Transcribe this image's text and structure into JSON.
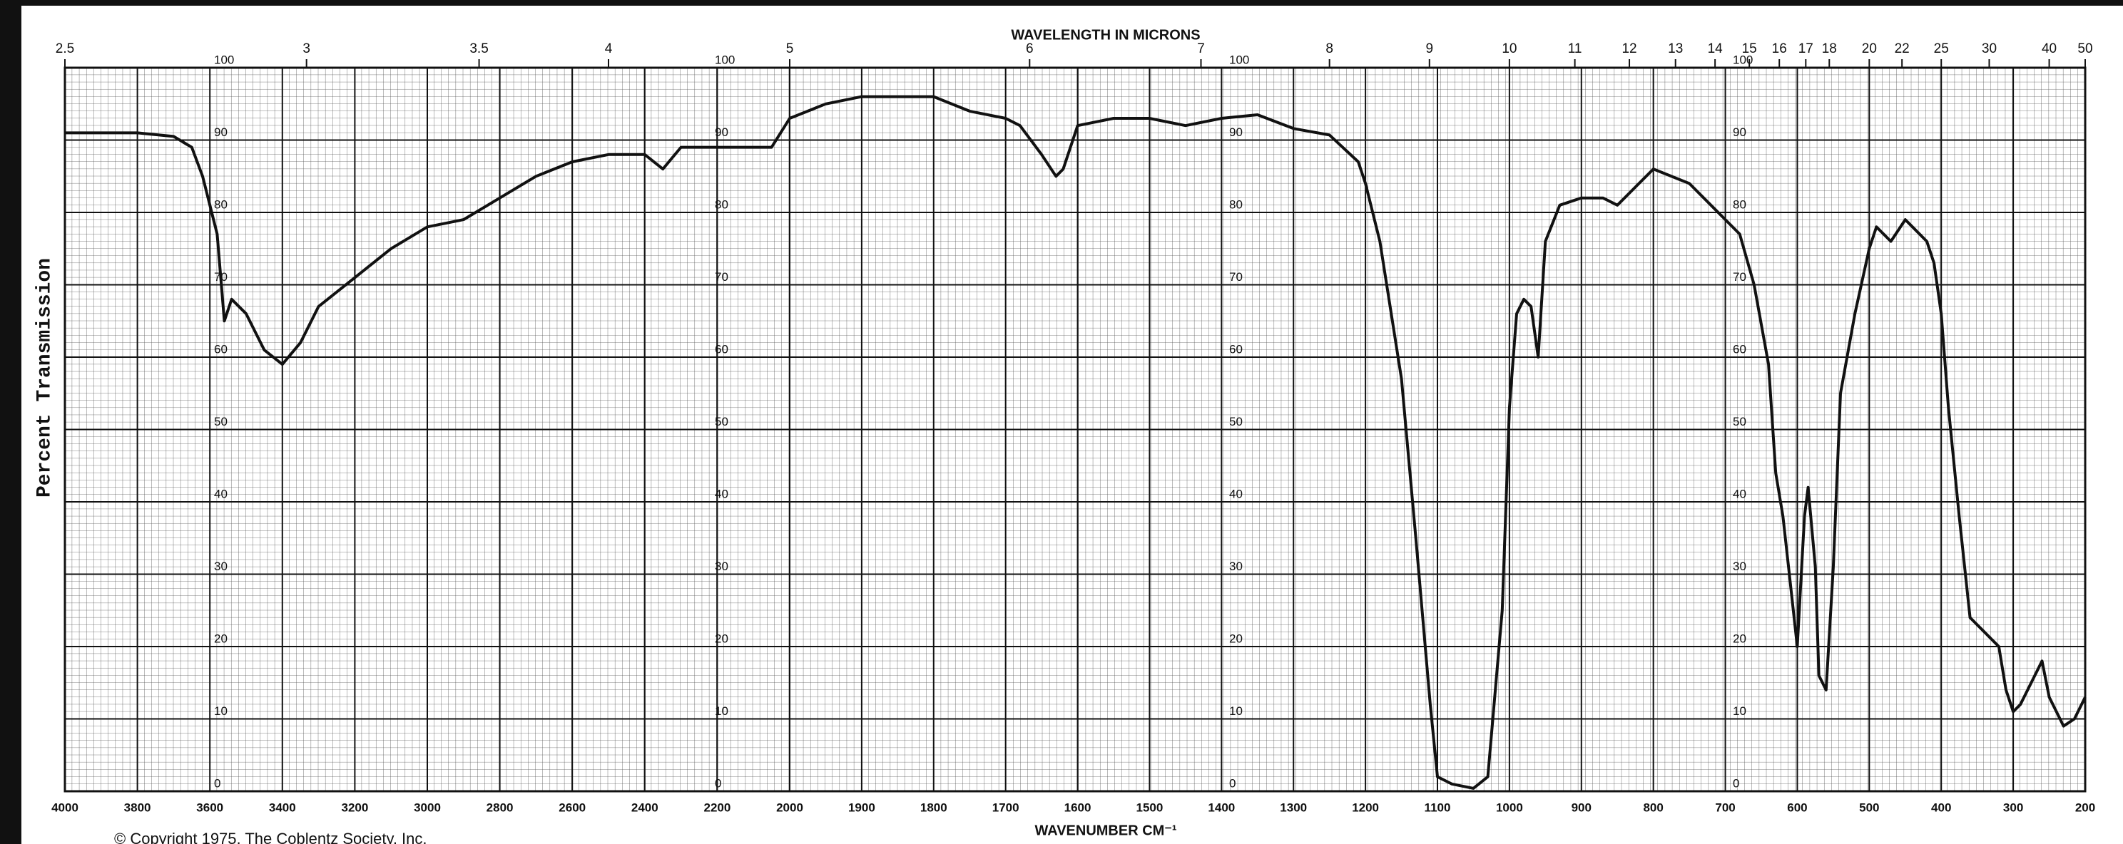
{
  "chart_data": {
    "type": "line",
    "y_label": "Percent Transmission",
    "x_label": "WAVENUMBER CM⁻¹",
    "x2_label": "WAVELENGTH IN MICRONS",
    "annotation": "© Copyright 1975, The Coblentz Society, Inc.",
    "color": "#111111",
    "x": [
      4000,
      3900,
      3800,
      3700,
      3650,
      3620,
      3600,
      3580,
      3560,
      3540,
      3500,
      3450,
      3400,
      3350,
      3300,
      3200,
      3100,
      3000,
      2900,
      2800,
      2700,
      2600,
      2500,
      2400,
      2350,
      2300,
      2200,
      2100,
      2050,
      2000,
      1950,
      1900,
      1850,
      1800,
      1750,
      1700,
      1680,
      1650,
      1630,
      1620,
      1600,
      1550,
      1500,
      1450,
      1400,
      1350,
      1300,
      1250,
      1210,
      1200,
      1180,
      1150,
      1130,
      1110,
      1100,
      1080,
      1050,
      1030,
      1010,
      1000,
      990,
      980,
      970,
      960,
      950,
      930,
      900,
      870,
      850,
      820,
      800,
      750,
      700,
      680,
      660,
      640,
      630,
      620,
      610,
      600,
      590,
      585,
      575,
      570,
      560,
      550,
      540,
      520,
      500,
      490,
      470,
      450,
      440,
      420,
      410,
      400,
      390,
      375,
      360,
      340,
      320,
      310,
      300,
      290,
      270,
      260,
      250,
      230,
      215,
      200
    ],
    "values": [
      91,
      91,
      91,
      90.5,
      89,
      85,
      81,
      77,
      65,
      68,
      66,
      61,
      59,
      62,
      67,
      71,
      75,
      78,
      79,
      82,
      85,
      87,
      88,
      88,
      86,
      89,
      89,
      89,
      89,
      93,
      95,
      96,
      96,
      96,
      94,
      93,
      92,
      88,
      85,
      86,
      92,
      93,
      93,
      92,
      93,
      93.5,
      91.6,
      90.7,
      87,
      84,
      76,
      57,
      35,
      12,
      2,
      1,
      0.4,
      2,
      25,
      53,
      66,
      68,
      67,
      60,
      76,
      81,
      82,
      82,
      81,
      84,
      86,
      84,
      79,
      77,
      70,
      59,
      44,
      38,
      29,
      20,
      38,
      42,
      31,
      16,
      14,
      31,
      55,
      66,
      75,
      78,
      76,
      79,
      78,
      76,
      73,
      66,
      53,
      38,
      24,
      22,
      20,
      14,
      11,
      12,
      16,
      18,
      13,
      9,
      10,
      13
    ],
    "xlim": [
      4000,
      200
    ],
    "x_scale_change": 2000,
    "xticks": [
      4000,
      3800,
      3600,
      3400,
      3200,
      3000,
      2800,
      2600,
      2400,
      2200,
      2000,
      1900,
      1800,
      1700,
      1600,
      1500,
      1400,
      1300,
      1200,
      1100,
      1000,
      900,
      800,
      700,
      600,
      500,
      400,
      300,
      200
    ],
    "x2ticks": [
      2.5,
      3,
      3.5,
      4,
      5,
      6,
      7,
      8,
      9,
      10,
      11,
      12,
      13,
      14,
      15,
      16,
      17,
      18,
      20,
      22,
      25,
      30,
      40,
      50
    ],
    "ylim": [
      0,
      100
    ],
    "yticks": [
      0,
      10,
      20,
      30,
      40,
      50,
      60,
      70,
      80,
      90,
      100
    ],
    "grid": true
  }
}
